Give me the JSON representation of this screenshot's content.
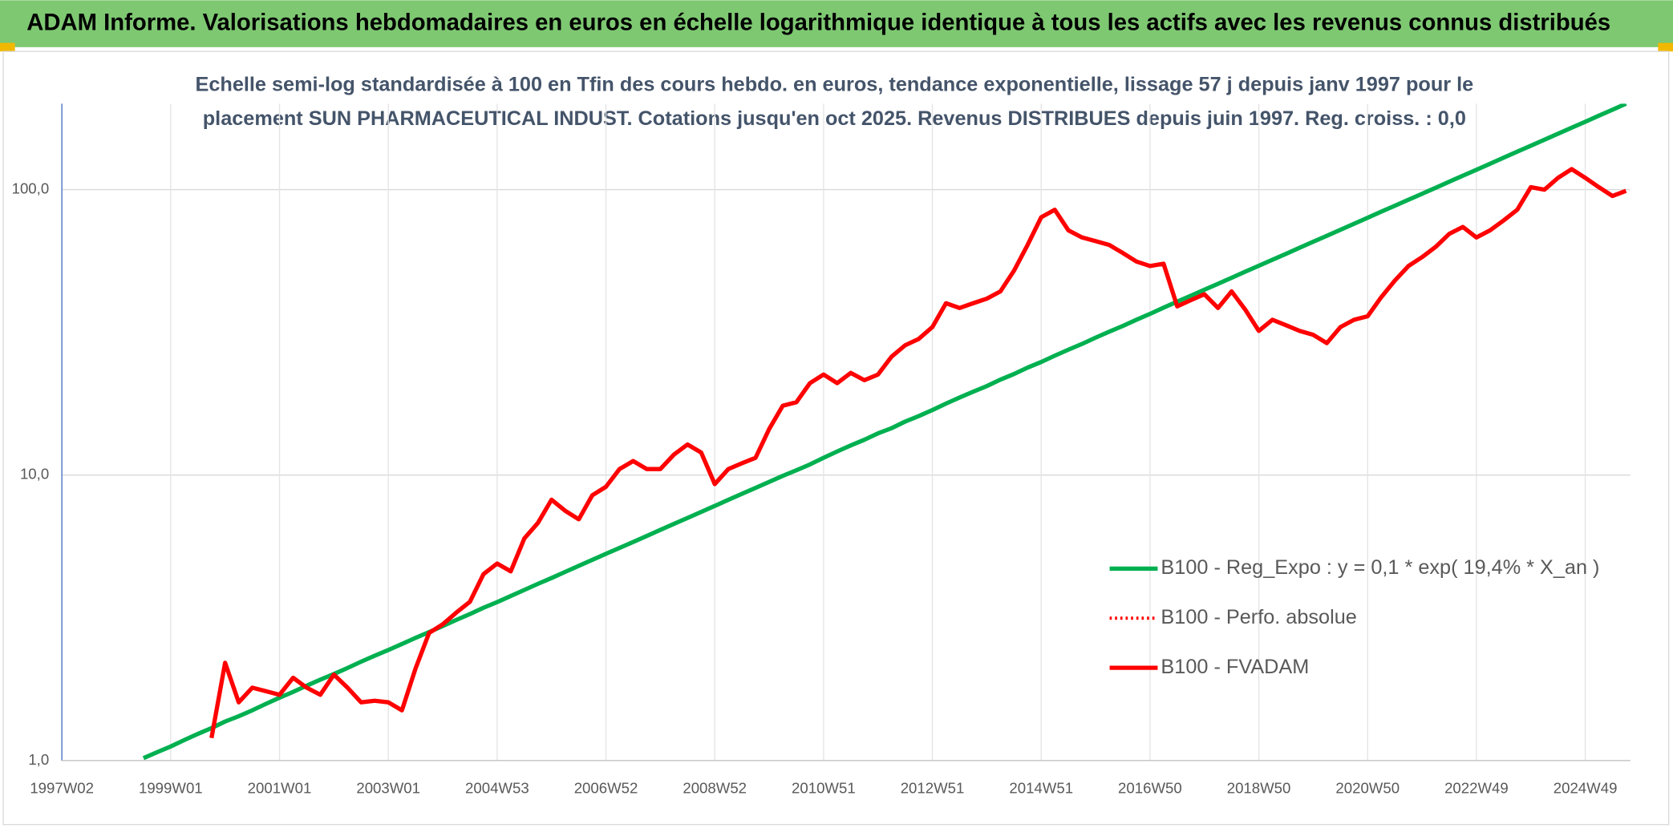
{
  "chart_data": {
    "type": "line",
    "title": "ADAM Informe. Valorisations hebdomadaires en euros en échelle logarithmique identique à tous les actifs avec les revenus connus distribués",
    "subtitle": [
      "Echelle semi-log standardisée à 100 en Tfin des cours hebdo. en euros, tendance exponentielle, lissage 57 j depuis janv 1997 pour le",
      "placement SUN PHARMACEUTICAL INDUST. Cotations jusqu'en oct 2025. Revenus DISTRIBUES depuis juin 1997. Reg. croiss. : 0,0"
    ],
    "categories": [
      "1997W02",
      null,
      null,
      null,
      null,
      null,
      null,
      null,
      "1999W01",
      null,
      null,
      null,
      null,
      null,
      null,
      null,
      "2001W01",
      null,
      null,
      null,
      null,
      null,
      null,
      null,
      "2003W01",
      null,
      null,
      null,
      null,
      null,
      null,
      null,
      "2004W53",
      null,
      null,
      null,
      null,
      null,
      null,
      null,
      "2006W52",
      null,
      null,
      null,
      null,
      null,
      null,
      null,
      "2008W52",
      null,
      null,
      null,
      null,
      null,
      null,
      null,
      "2010W51",
      null,
      null,
      null,
      null,
      null,
      null,
      null,
      "2012W51",
      null,
      null,
      null,
      null,
      null,
      null,
      null,
      "2014W51",
      null,
      null,
      null,
      null,
      null,
      null,
      null,
      "2016W50",
      null,
      null,
      null,
      null,
      null,
      null,
      null,
      "2018W50",
      null,
      null,
      null,
      null,
      null,
      null,
      null,
      "2020W50",
      null,
      null,
      null,
      null,
      null,
      null,
      null,
      "2022W49",
      null,
      null,
      null,
      null,
      null,
      null,
      null,
      "2024W49",
      null,
      null,
      null
    ],
    "series": [
      {
        "name": "B100 - Reg_Expo : y = 0,1 * exp( 19,4% *  X_an )",
        "color": "#00b050",
        "dash": "solid",
        "values": [
          null,
          null,
          null,
          null,
          null,
          null,
          1.02,
          1.07,
          1.12,
          1.18,
          1.24,
          1.3,
          1.37,
          1.43,
          1.5,
          1.58,
          1.66,
          1.74,
          1.83,
          1.92,
          2.01,
          2.11,
          2.22,
          2.33,
          2.44,
          2.56,
          2.69,
          2.82,
          2.96,
          3.11,
          3.26,
          3.43,
          3.59,
          3.77,
          3.96,
          4.16,
          4.36,
          4.58,
          4.81,
          5.05,
          5.3,
          5.56,
          5.83,
          6.12,
          6.43,
          6.75,
          7.08,
          7.43,
          7.8,
          8.19,
          8.6,
          9.02,
          9.47,
          9.94,
          10.4,
          10.9,
          11.5,
          12.1,
          12.7,
          13.3,
          14.0,
          14.6,
          15.4,
          16.1,
          16.9,
          17.8,
          18.7,
          19.6,
          20.5,
          21.6,
          22.6,
          23.8,
          24.9,
          26.2,
          27.5,
          28.8,
          30.3,
          31.8,
          33.3,
          35.0,
          36.7,
          38.6,
          40.5,
          42.5,
          44.6,
          46.8,
          49.1,
          51.6,
          54.1,
          56.8,
          59.6,
          62.6,
          65.7,
          68.9,
          72.3,
          75.9,
          79.7,
          83.7,
          87.8,
          92.2,
          96.7,
          101.5,
          106.6,
          111.9,
          117.4,
          123.2,
          129.4,
          135.8,
          142.5,
          149.6,
          157.0,
          164.8,
          172.9,
          181.6,
          190.5,
          200
        ]
      },
      {
        "name": "B100 - Perfo. absolue",
        "color": "#ff0000",
        "dash": "dotted",
        "values": [
          null,
          null,
          null,
          null,
          null,
          null,
          null,
          null,
          null,
          null,
          null,
          null,
          null,
          null,
          null,
          null,
          null,
          null,
          null,
          null,
          null,
          null,
          null,
          null,
          null,
          null,
          null,
          null,
          null,
          null,
          null,
          null,
          null,
          null,
          null,
          null,
          null,
          null,
          null,
          null,
          null,
          null,
          null,
          null,
          null,
          null,
          null,
          null,
          null,
          null,
          null,
          null,
          null,
          null,
          null,
          null,
          null,
          null,
          null,
          null,
          null,
          null,
          null,
          null,
          null,
          null,
          null,
          null,
          null,
          null,
          null,
          null,
          null,
          null,
          null,
          null,
          null,
          null,
          null,
          null,
          null,
          null,
          null,
          null,
          null,
          null,
          null,
          null,
          null,
          null,
          null,
          null,
          null,
          null,
          null,
          null,
          null,
          null,
          null,
          null,
          null,
          null,
          null,
          null,
          null,
          null,
          null,
          null,
          null,
          null,
          null,
          null,
          null,
          null,
          null,
          null
        ]
      },
      {
        "name": "B100 - FVADAM",
        "color": "#ff0000",
        "dash": "solid",
        "values": [
          null,
          null,
          null,
          null,
          null,
          null,
          null,
          null,
          null,
          null,
          null,
          1.2,
          2.2,
          1.6,
          1.8,
          1.75,
          1.7,
          1.95,
          1.8,
          1.7,
          2.0,
          1.8,
          1.6,
          1.62,
          1.6,
          1.5,
          2.1,
          2.8,
          3.0,
          3.3,
          3.6,
          4.5,
          4.9,
          4.6,
          6.0,
          6.8,
          8.2,
          7.5,
          7.0,
          8.5,
          9.1,
          10.5,
          11.2,
          10.5,
          10.5,
          11.8,
          12.8,
          12.0,
          9.3,
          10.5,
          11.0,
          11.5,
          14.5,
          17.5,
          18.0,
          21.0,
          22.5,
          21.0,
          22.8,
          21.5,
          22.5,
          26.0,
          28.5,
          30.0,
          33.0,
          40.0,
          38.5,
          40.0,
          41.5,
          44.0,
          52.0,
          64.0,
          80.0,
          85.0,
          72.0,
          68.0,
          66.0,
          64.0,
          60.0,
          56.0,
          54.0,
          55.0,
          39.0,
          41.0,
          43.0,
          38.5,
          44.0,
          38.0,
          32.0,
          35.0,
          33.5,
          32.0,
          31.0,
          29.0,
          33.0,
          35.0,
          36.0,
          42.0,
          48.0,
          54.0,
          58.0,
          63.0,
          70.0,
          74.0,
          68.0,
          72.0,
          78.0,
          85.0,
          102.0,
          100.0,
          110.0,
          118.0,
          110.0,
          102.0,
          95.0,
          99.0
        ]
      }
    ],
    "ylim": [
      1,
      200
    ],
    "log_y": true,
    "yticks": [
      {
        "value": 1,
        "label": "1,0"
      },
      {
        "value": 10,
        "label": "10,0"
      },
      {
        "value": 100,
        "label": "100,0"
      }
    ],
    "grid": true,
    "legend": "lower right"
  }
}
